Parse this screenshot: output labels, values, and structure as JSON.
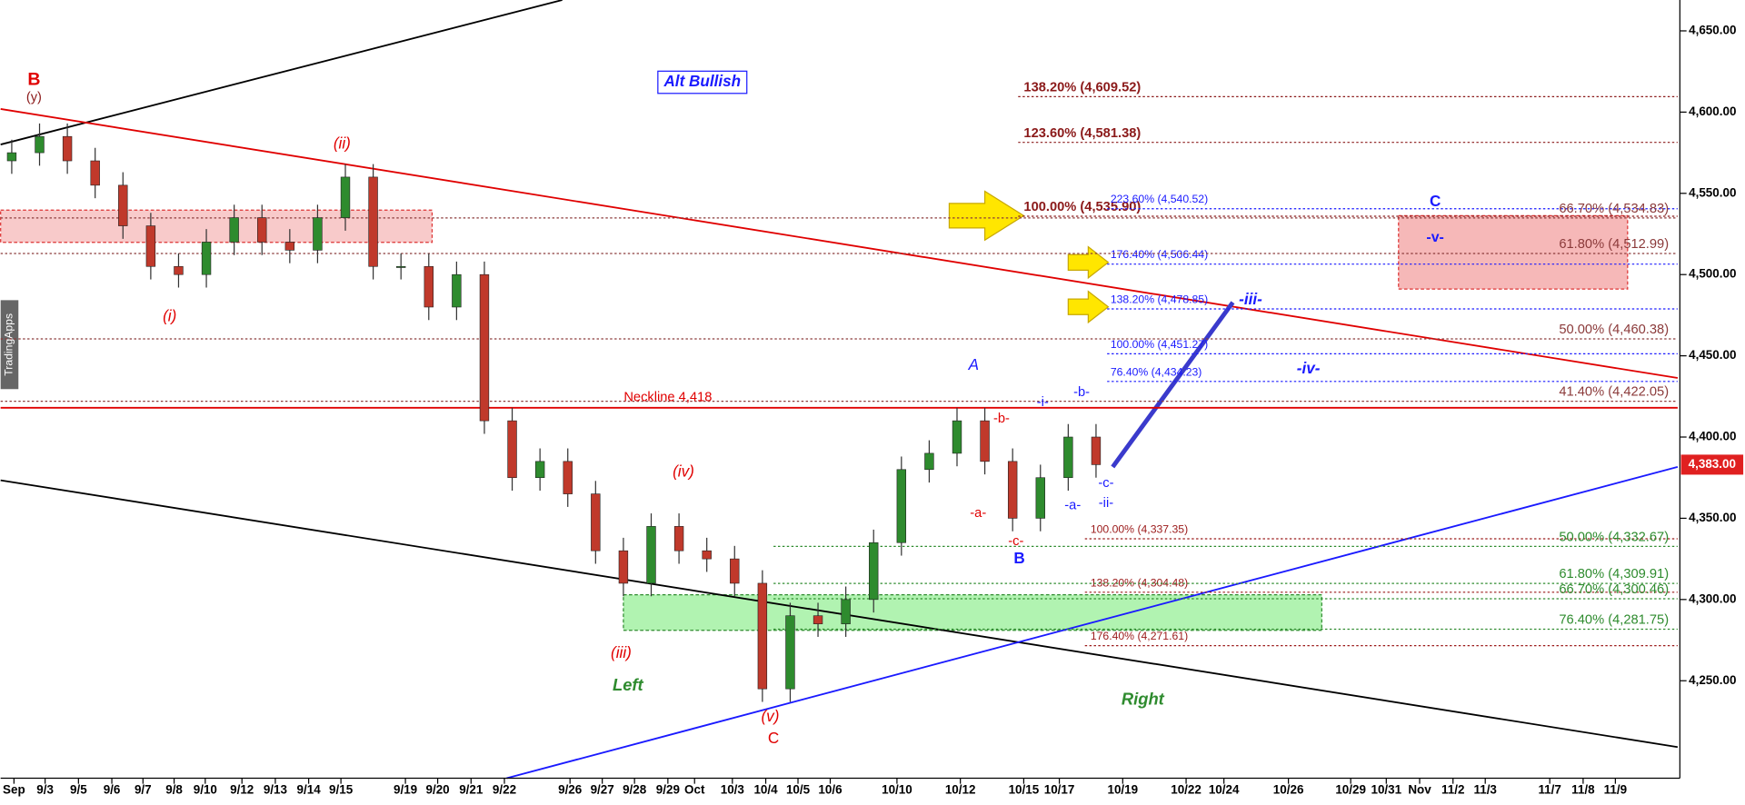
{
  "chart_data": {
    "type": "candlestick",
    "x_tick_labels": [
      "Sep",
      "9/3",
      "9/5",
      "9/6",
      "9/7",
      "9/8",
      "9/10",
      "9/12",
      "9/13",
      "9/14",
      "9/15",
      "9/19",
      "9/20",
      "9/21",
      "9/22",
      "9/26",
      "9/27",
      "9/28",
      "9/29",
      "Oct",
      "10/3",
      "10/4",
      "10/5",
      "10/6",
      "10/10",
      "10/12",
      "10/15",
      "10/17",
      "10/19",
      "10/22",
      "10/24",
      "10/26",
      "10/29",
      "10/31",
      "Nov",
      "11/2",
      "11/3",
      "11/7",
      "11/8",
      "11/9"
    ],
    "open": [
      4570,
      4575,
      4585,
      4570,
      4555,
      4530,
      4505,
      4500,
      4520,
      4535,
      4520,
      4515,
      4535,
      4560,
      4505,
      4505,
      4480,
      4500,
      4410,
      4375,
      4385,
      4365,
      4330,
      4310,
      4345,
      4330,
      4325,
      4310,
      4245,
      4290,
      4285,
      4300,
      4335,
      4380,
      4390,
      4410,
      4385,
      4350,
      4375,
      4400
    ],
    "high": [
      4583,
      4593,
      4593,
      4578,
      4563,
      4538,
      4513,
      4528,
      4543,
      4543,
      4528,
      4543,
      4568,
      4568,
      4513,
      4513,
      4508,
      4508,
      4418,
      4393,
      4393,
      4373,
      4338,
      4353,
      4353,
      4338,
      4333,
      4318,
      4298,
      4298,
      4308,
      4343,
      4388,
      4398,
      4418,
      4418,
      4393,
      4383,
      4408,
      4408
    ],
    "low": [
      4562,
      4567,
      4562,
      4547,
      4522,
      4497,
      4492,
      4492,
      4512,
      4512,
      4507,
      4507,
      4527,
      4497,
      4497,
      4472,
      4472,
      4402,
      4367,
      4367,
      4357,
      4322,
      4302,
      4302,
      4322,
      4317,
      4302,
      4237,
      4237,
      4277,
      4277,
      4292,
      4327,
      4372,
      4382,
      4377,
      4342,
      4342,
      4367,
      4375
    ],
    "close": [
      4575,
      4585,
      4570,
      4555,
      4530,
      4505,
      4500,
      4520,
      4535,
      4520,
      4515,
      4535,
      4560,
      4505,
      4505,
      4480,
      4500,
      4410,
      4375,
      4385,
      4365,
      4330,
      4310,
      4345,
      4330,
      4325,
      4310,
      4245,
      4290,
      4285,
      4300,
      4335,
      4380,
      4390,
      4410,
      4385,
      4350,
      4375,
      4400,
      4383
    ],
    "up_color": "#2e8b2e",
    "down_color": "#c0392b",
    "ylim": [
      4190,
      4669
    ],
    "yticks": [
      {
        "value": 4250,
        "label": "4,250.00"
      },
      {
        "value": 4300,
        "label": "4,300.00"
      },
      {
        "value": 4350,
        "label": "4,350.00"
      },
      {
        "value": 4400,
        "label": "4,400.00"
      },
      {
        "value": 4450,
        "label": "4,450.00"
      },
      {
        "value": 4500,
        "label": "4,500.00"
      },
      {
        "value": 4550,
        "label": "4,550.00"
      },
      {
        "value": 4600,
        "label": "4,600.00"
      },
      {
        "value": 4650,
        "label": "4,650.00"
      }
    ],
    "last_price": {
      "value": 4383,
      "label": "4,383.00"
    },
    "neckline": {
      "value": 4418,
      "label": "Neckline 4,418"
    },
    "levels": [
      {
        "label": "138.20% (4,609.52)",
        "value": 4609.52,
        "color": "#8b1a1a"
      },
      {
        "label": "123.60% (4,581.38)",
        "value": 4581.38,
        "color": "#8b1a1a"
      },
      {
        "label": "100.00% (4,535.90)",
        "value": 4535.9,
        "color": "#8b1a1a"
      },
      {
        "label": "223.60% (4,540.52)",
        "value": 4540.52,
        "color": "#1a1aff"
      },
      {
        "label": "176.40% (4,506.44)",
        "value": 4506.44,
        "color": "#1a1aff"
      },
      {
        "label": "138.20% (4,478.85)",
        "value": 4478.85,
        "color": "#1a1aff"
      },
      {
        "label": "100.00% (4,451.27)",
        "value": 4451.27,
        "color": "#1a1aff"
      },
      {
        "label": "76.40% (4,434.23)",
        "value": 4434.23,
        "color": "#1a1aff"
      },
      {
        "label": "66.70% (4,534.83)",
        "value": 4534.83,
        "color": "#8b3a3a"
      },
      {
        "label": "61.80% (4,512.99)",
        "value": 4512.99,
        "color": "#8b3a3a"
      },
      {
        "label": "50.00% (4,460.38)",
        "value": 4460.38,
        "color": "#8b3a3a"
      },
      {
        "label": "41.40% (4,422.05)",
        "value": 4422.05,
        "color": "#8b3a3a"
      },
      {
        "label": "100.00% (4,337.35)",
        "value": 4337.35,
        "color": "#9b1a1a"
      },
      {
        "label": "138.20% (4,304.48)",
        "value": 4304.48,
        "color": "#9b1a1a"
      },
      {
        "label": "176.40% (4,271.61)",
        "value": 4271.61,
        "color": "#9b1a1a"
      },
      {
        "label": "50.00% (4,332.67)",
        "value": 4332.67,
        "color": "#2e8b2e"
      },
      {
        "label": "61.80% (4,309.91)",
        "value": 4309.91,
        "color": "#2e8b2e"
      },
      {
        "label": "66.70% (4,300.46)",
        "value": 4300.46,
        "color": "#2e8b2e"
      },
      {
        "label": "76.40% (4,281.75)",
        "value": 4281.75,
        "color": "#2e8b2e"
      }
    ],
    "annotations": [
      {
        "text": "B",
        "color": "#e00000"
      },
      {
        "text": "(y)",
        "color": "#8b1a1a"
      },
      {
        "text": "(ii)",
        "color": "#e00000"
      },
      {
        "text": "(i)",
        "color": "#e00000"
      },
      {
        "text": "(iv)",
        "color": "#e00000"
      },
      {
        "text": "(iii)",
        "color": "#e00000"
      },
      {
        "text": "(v)",
        "color": "#e00000"
      },
      {
        "text": "C",
        "color": "#e00000"
      },
      {
        "text": "Left",
        "color": "#2e8b2e"
      },
      {
        "text": "Right",
        "color": "#2e8b2e"
      },
      {
        "text": "A",
        "color": "#1a1aff"
      },
      {
        "text": "B",
        "color": "#1a1aff"
      },
      {
        "text": "-a-",
        "color": "#e00000"
      },
      {
        "text": "-b-",
        "color": "#e00000"
      },
      {
        "text": "-c-",
        "color": "#e00000"
      },
      {
        "text": "-i-",
        "color": "#1a1aff"
      },
      {
        "text": "-b-",
        "color": "#1a1aff"
      },
      {
        "text": "-a-",
        "color": "#1a1aff"
      },
      {
        "text": "-c-",
        "color": "#1a1aff"
      },
      {
        "text": "-ii-",
        "color": "#1a1aff"
      },
      {
        "text": "-iii-",
        "color": "#1a1aff"
      },
      {
        "text": "-iv-",
        "color": "#1a1aff"
      },
      {
        "text": "C",
        "color": "#1a1aff"
      },
      {
        "text": "-v-",
        "color": "#1a1aff"
      }
    ],
    "alt_label": "Alt Bullish",
    "watermark": "TradingApps"
  }
}
